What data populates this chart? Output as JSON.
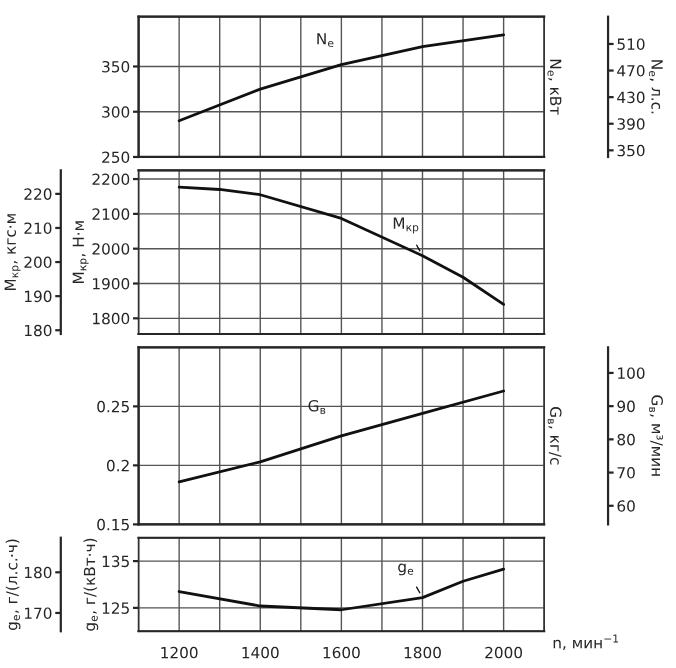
{
  "chart_data": [
    {
      "type": "line",
      "x": [
        1200,
        1400,
        1600,
        1800,
        2000
      ],
      "xlim": [
        1100,
        2100
      ],
      "xticks": [
        {
          "value": 1100,
          "label": null
        },
        {
          "value": 1200,
          "label": null
        },
        {
          "value": 1300,
          "label": null
        },
        {
          "value": 1400,
          "label": null
        },
        {
          "value": 1500,
          "label": null
        },
        {
          "value": 1600,
          "label": null
        },
        {
          "value": 1700,
          "label": null
        },
        {
          "value": 1800,
          "label": null
        },
        {
          "value": 1900,
          "label": null
        },
        {
          "value": 2000,
          "label": null
        },
        {
          "value": 2100,
          "label": null
        }
      ],
      "y2lim": [
        250,
        405
      ],
      "y2ticks": [
        250,
        300,
        350
      ],
      "y2label": "N$_{e}$, кВт",
      "y3label": "N$_{e}$, л.с.",
      "y3lim": [
        340,
        551
      ],
      "y3ticks": [
        350,
        390,
        430,
        470,
        510
      ],
      "series": [
        {
          "color": "#111111",
          "axis": "y2",
          "values": [
            290,
            325,
            352,
            372,
            385
          ]
        }
      ],
      "annotations": [
        "N$_{e}$"
      ],
      "grid": true,
      "tick_labels": "y"
    },
    {
      "type": "line",
      "x": [
        1200,
        1300,
        1400,
        1600,
        1800,
        1900,
        2000
      ],
      "xlim": [
        1100,
        2100
      ],
      "xticks": [
        {
          "value": 1100,
          "label": null
        },
        {
          "value": 1200,
          "label": null
        },
        {
          "value": 1300,
          "label": null
        },
        {
          "value": 1400,
          "label": null
        },
        {
          "value": 1500,
          "label": null
        },
        {
          "value": 1600,
          "label": null
        },
        {
          "value": 1700,
          "label": null
        },
        {
          "value": 1800,
          "label": null
        },
        {
          "value": 1900,
          "label": null
        },
        {
          "value": 2000,
          "label": null
        },
        {
          "value": 2100,
          "label": null
        }
      ],
      "ylim": [
        1755,
        2225
      ],
      "yticks": [
        1800,
        1900,
        2000,
        2100,
        2200
      ],
      "ylabel": "M$_{кр}$, Н·м",
      "y2label": "M$_{кр}$, кгс·м",
      "y2lim": [
        178.9,
        226.9
      ],
      "y2ticks": [
        180,
        190,
        200,
        210,
        220
      ],
      "series": [
        {
          "color": "#111111",
          "values": [
            2177,
            2170,
            2155,
            2087,
            1980,
            1918,
            1840
          ]
        }
      ],
      "annotations": [
        {
          "text": "M$_{кр}$",
          "x": 1800,
          "y": 1980
        }
      ],
      "grid": true,
      "tick_labels": "y"
    },
    {
      "type": "line",
      "x": [
        1200,
        1400,
        1600,
        1800,
        2000
      ],
      "xlim": [
        1100,
        2100
      ],
      "xticks": [
        {
          "value": 1100,
          "label": null
        },
        {
          "value": 1200,
          "label": null
        },
        {
          "value": 1300,
          "label": null
        },
        {
          "value": 1400,
          "label": null
        },
        {
          "value": 1500,
          "label": null
        },
        {
          "value": 1600,
          "label": null
        },
        {
          "value": 1700,
          "label": null
        },
        {
          "value": 1800,
          "label": null
        },
        {
          "value": 1900,
          "label": null
        },
        {
          "value": 2000,
          "label": null
        },
        {
          "value": 2100,
          "label": null
        }
      ],
      "y2lim": [
        0.15,
        0.3
      ],
      "y2ticks": [
        0.15,
        0.2,
        0.25
      ],
      "y2label": "G$_{в}$, кг/с",
      "y3label": "G$_{в}$, м³/мин",
      "y3lim": [
        54.4,
        107.7
      ],
      "y3ticks": [
        60,
        70,
        80,
        90,
        100
      ],
      "series": [
        {
          "color": "#111111",
          "axis": "y2",
          "values": [
            0.186,
            0.203,
            0.225,
            0.244,
            0.263
          ]
        }
      ],
      "annotations": [
        "G$_{в}$"
      ],
      "grid": true,
      "tick_labels": "y"
    },
    {
      "type": "line",
      "x": [
        1200,
        1400,
        1600,
        1800,
        1900,
        2000
      ],
      "xlim": [
        1100,
        2100
      ],
      "xticks": [
        {
          "value": 1100,
          "label": null
        },
        {
          "value": 1200,
          "label": "1200"
        },
        {
          "value": 1300,
          "label": null
        },
        {
          "value": 1400,
          "label": "1400"
        },
        {
          "value": 1500,
          "label": null
        },
        {
          "value": 1600,
          "label": "1600"
        },
        {
          "value": 1700,
          "label": null
        },
        {
          "value": 1800,
          "label": "1800"
        },
        {
          "value": 1900,
          "label": null
        },
        {
          "value": 2000,
          "label": "2000"
        },
        {
          "value": 2100,
          "label": null
        }
      ],
      "xlabel": "n, мин$^{−1}$",
      "ylim": [
        120,
        140
      ],
      "yticks": [
        125,
        135
      ],
      "ylabel": "g$_{e}$, г/(кВт·ч)",
      "y2label": "g$_{e}$, г/(л.с.·ч)",
      "y2lim": [
        165.5,
        188.5
      ],
      "y2ticks": [
        170,
        180
      ],
      "series": [
        {
          "color": "#111111",
          "values": [
            128.5,
            125.4,
            124.6,
            127.2,
            130.7,
            133.3
          ]
        }
      ],
      "annotations": [
        {
          "text": "g$_{e}$",
          "x": 1800,
          "y": 127.2
        }
      ],
      "grid": true
    }
  ]
}
